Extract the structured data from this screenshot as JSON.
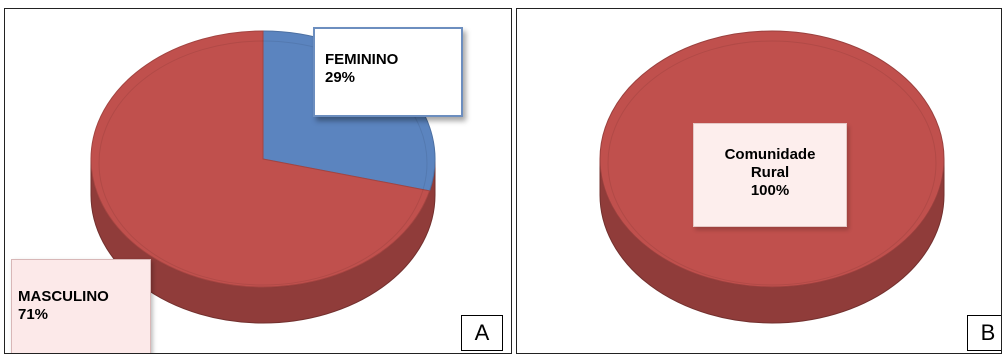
{
  "chart_data": [
    {
      "type": "pie",
      "panel_label": "A",
      "slices": [
        {
          "label": "FEMININO",
          "value": 29,
          "display": "29%",
          "color": "#5b84bf"
        },
        {
          "label": "MASCULINO",
          "value": 71,
          "display": "71%",
          "color": "#c0504d"
        }
      ],
      "style": "3d"
    },
    {
      "type": "pie",
      "panel_label": "B",
      "slices": [
        {
          "label": "Comunidade Rural",
          "value": 100,
          "display": "100%",
          "color": "#c0504d"
        }
      ],
      "style": "3d"
    }
  ],
  "labels": {
    "a_fem_name": "FEMININO",
    "a_fem_value": "29%",
    "a_masc_name": "MASCULINO",
    "a_masc_value": "71%",
    "b_line1": "Comunidade",
    "b_line2": "Rural",
    "b_value": "100%",
    "panel_a": "A",
    "panel_b": "B"
  }
}
